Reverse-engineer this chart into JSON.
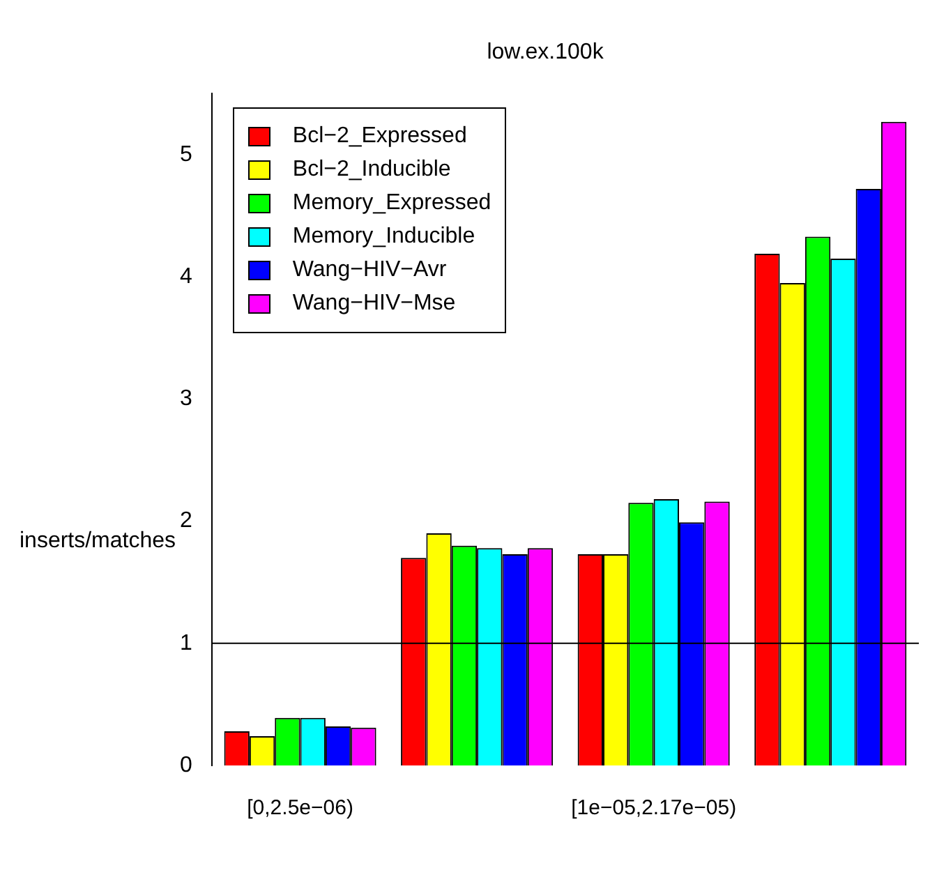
{
  "chart_data": {
    "type": "bar",
    "title": "low.ex.100k",
    "ylabel": "inserts/matches",
    "categories": [
      "[0,2.5e−06)",
      null,
      "[1e−05,2.17e−05)",
      null
    ],
    "series": [
      {
        "name": "Bcl−2_Expressed",
        "color": "#ff0000",
        "values": [
          0.28,
          1.7,
          1.73,
          4.19
        ]
      },
      {
        "name": "Bcl−2_Inducible",
        "color": "#ffff00",
        "values": [
          0.24,
          1.9,
          1.73,
          3.95
        ]
      },
      {
        "name": "Memory_Expressed",
        "color": "#00ff00",
        "values": [
          0.39,
          1.8,
          2.15,
          4.33
        ]
      },
      {
        "name": "Memory_Inducible",
        "color": "#00ffff",
        "values": [
          0.39,
          1.78,
          2.18,
          4.15
        ]
      },
      {
        "name": "Wang−HIV−Avr",
        "color": "#0000ff",
        "values": [
          0.32,
          1.73,
          1.99,
          4.72
        ]
      },
      {
        "name": "Wang−HIV−Mse",
        "color": "#ff00ff",
        "values": [
          0.31,
          1.78,
          2.16,
          5.27
        ]
      }
    ],
    "ylim": [
      0,
      5.5
    ],
    "yticks": [
      0,
      1,
      2,
      3,
      4,
      5
    ],
    "grid": false,
    "legend": "top left",
    "ref_lines": [
      {
        "axis": "y",
        "value": 1,
        "color": "#000000"
      }
    ]
  }
}
